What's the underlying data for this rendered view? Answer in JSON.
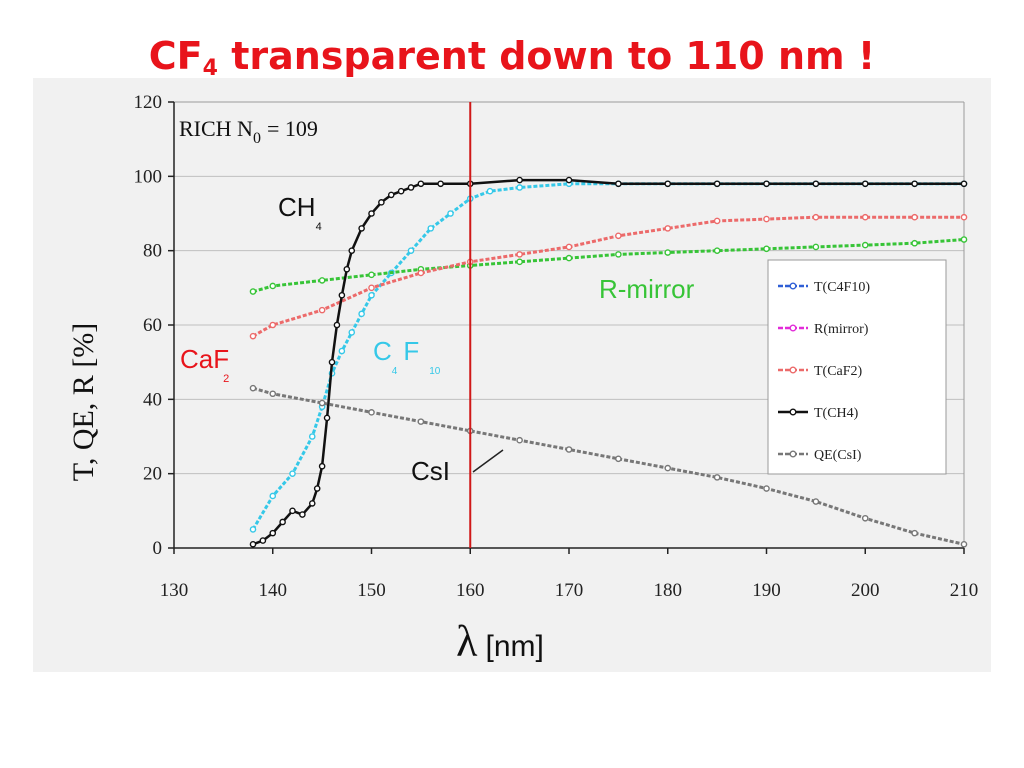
{
  "slide": {
    "title_prefix": "CF",
    "title_sub": "4",
    "title_rest": " transparent down to 110 nm !"
  },
  "colors": {
    "title": "#e8141b",
    "panel_bg": "#f1f1f1",
    "grid": "#bfbfbf",
    "c4f10": "#35c8e8",
    "c4f10_legend": "#2f5fd6",
    "mirror": "#37c437",
    "mirror_legend": "#e22bd8",
    "caf2": "#ec6a6a",
    "ch4": "#111111",
    "csi": "#777777",
    "cutoff_line": "#d01818"
  },
  "chart_data": {
    "type": "line",
    "title": "",
    "xlabel_symbol": "λ",
    "xlabel_unit": "[nm]",
    "ylabel": "T, QE, R  [%]",
    "xlim": [
      130,
      210
    ],
    "ylim": [
      0,
      120
    ],
    "xticks": [
      130,
      140,
      150,
      160,
      170,
      180,
      190,
      200,
      210
    ],
    "yticks": [
      0,
      20,
      40,
      60,
      80,
      100,
      120
    ],
    "grid": {
      "horizontal": true,
      "vertical": false
    },
    "vline_x": 160,
    "legend_position": "right",
    "series": [
      {
        "name": "T(C4F10)",
        "key": "c4f10",
        "x": [
          138,
          140,
          142,
          144,
          145,
          146,
          147,
          148,
          149,
          150,
          152,
          154,
          156,
          158,
          160,
          162,
          165,
          170,
          175,
          180,
          185,
          190,
          195,
          200,
          205,
          210
        ],
        "y": [
          5,
          14,
          20,
          30,
          38,
          47,
          53,
          58,
          63,
          68,
          74,
          80,
          86,
          90,
          94,
          96,
          97,
          98,
          98,
          98,
          98,
          98,
          98,
          98,
          98,
          98
        ]
      },
      {
        "name": "R(mirror)",
        "key": "mirror",
        "x": [
          138,
          140,
          145,
          150,
          155,
          160,
          165,
          170,
          175,
          180,
          185,
          190,
          195,
          200,
          205,
          210
        ],
        "y": [
          69,
          70.5,
          72,
          73.5,
          75,
          76,
          77,
          78,
          79,
          79.5,
          80,
          80.5,
          81,
          81.5,
          82,
          83
        ]
      },
      {
        "name": "T(CaF2)",
        "key": "caf2",
        "x": [
          138,
          140,
          145,
          150,
          155,
          160,
          165,
          170,
          175,
          180,
          185,
          190,
          195,
          200,
          205,
          210
        ],
        "y": [
          57,
          60,
          64,
          70,
          74,
          77,
          79,
          81,
          84,
          86,
          88,
          88.5,
          89,
          89,
          89,
          89
        ]
      },
      {
        "name": "T(CH4)",
        "key": "ch4",
        "x": [
          138,
          139,
          140,
          141,
          142,
          143,
          144,
          144.5,
          145,
          145.5,
          146,
          146.5,
          147,
          147.5,
          148,
          149,
          150,
          151,
          152,
          153,
          154,
          155,
          157,
          160,
          165,
          170,
          175,
          180,
          185,
          190,
          195,
          200,
          205,
          210
        ],
        "y": [
          1,
          2,
          4,
          7,
          10,
          9,
          12,
          16,
          22,
          35,
          50,
          60,
          68,
          75,
          80,
          86,
          90,
          93,
          95,
          96,
          97,
          98,
          98,
          98,
          99,
          99,
          98,
          98,
          98,
          98,
          98,
          98,
          98,
          98
        ]
      },
      {
        "name": "QE(CsI)",
        "key": "csi",
        "x": [
          138,
          140,
          145,
          150,
          155,
          160,
          165,
          170,
          175,
          180,
          185,
          190,
          195,
          200,
          205,
          210
        ],
        "y": [
          43,
          41.5,
          39,
          36.5,
          34,
          31.5,
          29,
          26.5,
          24,
          21.5,
          19,
          16,
          12.5,
          8,
          4,
          1
        ]
      }
    ],
    "annotations": {
      "rich_label": "RICH  N",
      "rich_sub": "0",
      "rich_value": "= 109",
      "ch4_main": "CH",
      "ch4_sub": "4",
      "caf_main": "CaF",
      "caf_sub": "2",
      "c4f10_c": "C",
      "c4f10_sub4": "4",
      "c4f10_f": "F",
      "c4f10_sub10": "10",
      "csi": "CsI",
      "rmirror": "R-mirror"
    }
  }
}
